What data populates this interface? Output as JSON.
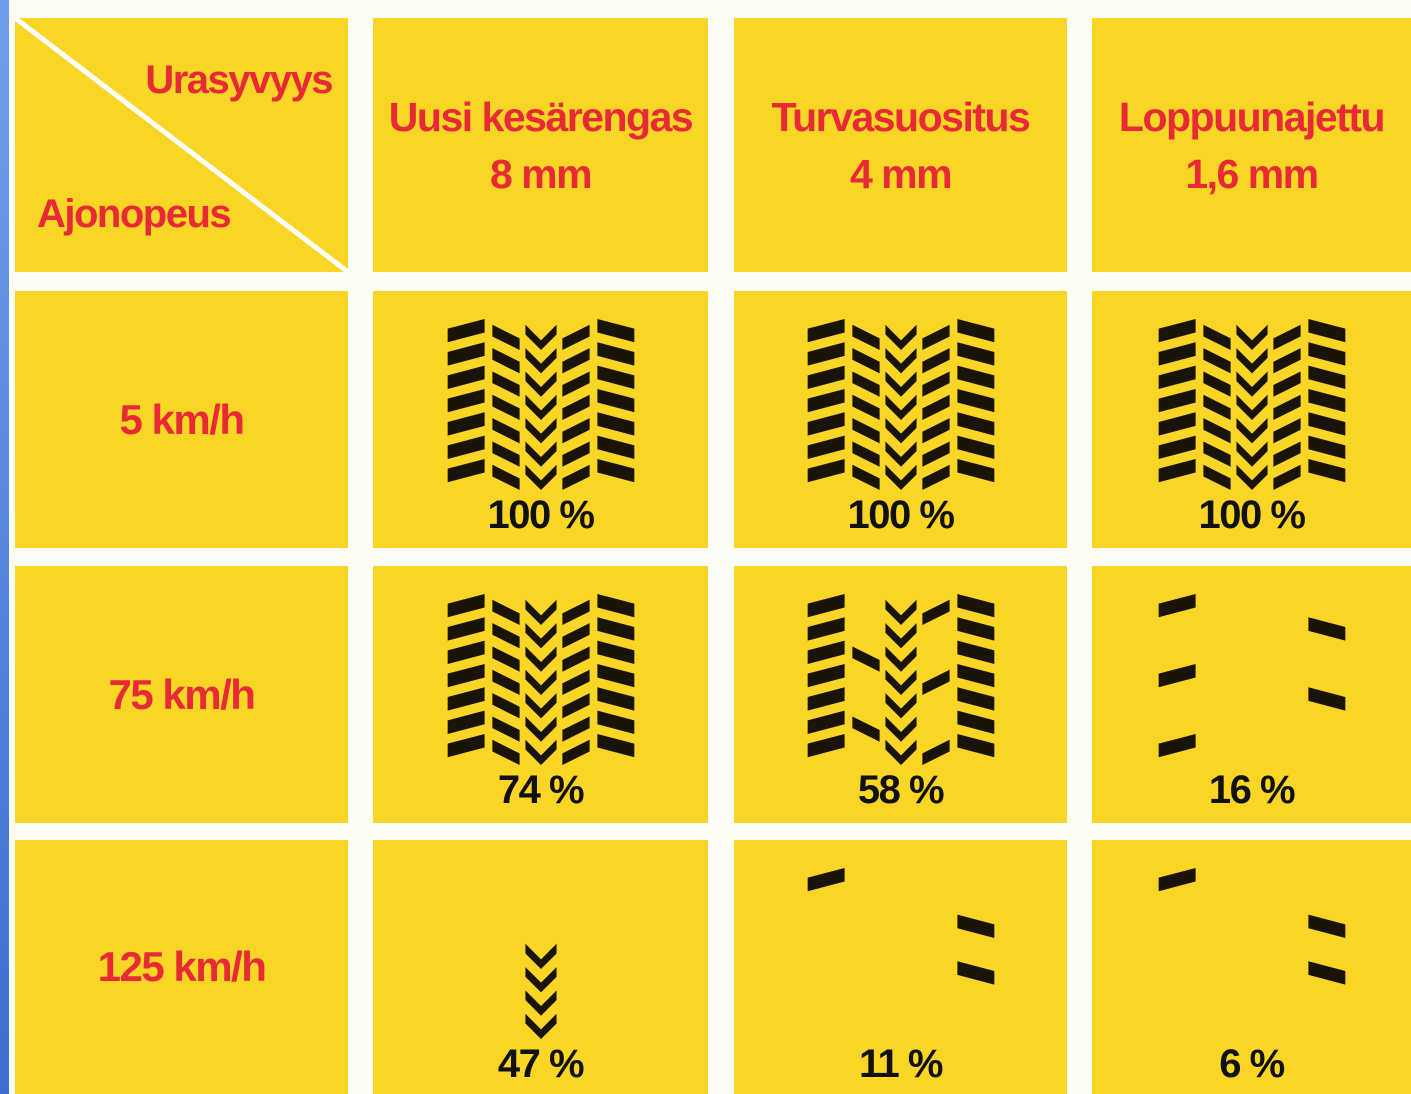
{
  "corner": {
    "column_label": "Urasyvyys",
    "row_label": "Ajonopeus"
  },
  "columns": [
    {
      "name": "Uusi kesärengas",
      "depth": "8 mm"
    },
    {
      "name": "Turvasuositus",
      "depth": "4 mm"
    },
    {
      "name": "Loppuunajettu",
      "depth": "1,6 mm"
    }
  ],
  "rows": [
    {
      "speed": "5 km/h",
      "cells": [
        "100 %",
        "100 %",
        "100 %"
      ]
    },
    {
      "speed": "75 km/h",
      "cells": [
        "74 %",
        "58 %",
        "16 %"
      ]
    },
    {
      "speed": "125 km/h",
      "cells": [
        "47 %",
        "11 %",
        "6 %"
      ]
    }
  ]
}
